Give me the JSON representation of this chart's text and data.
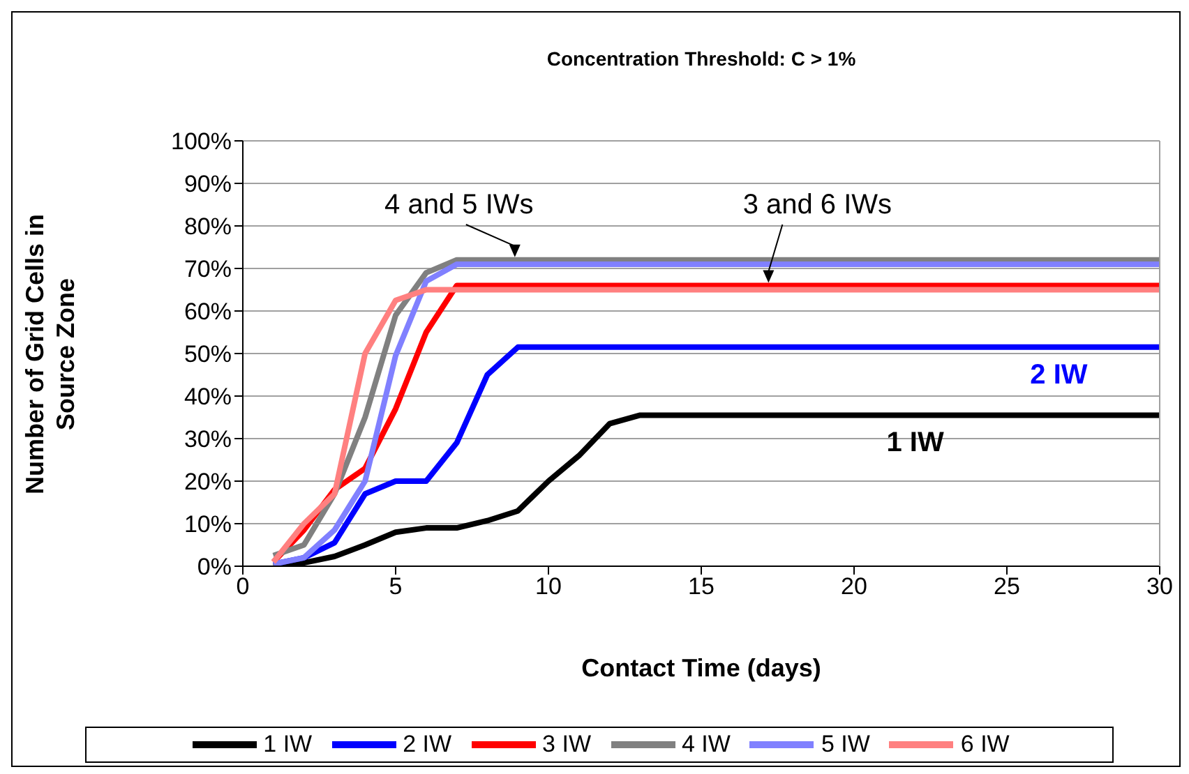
{
  "chart_data": {
    "type": "line",
    "title": "Concentration Threshold:  C > 1%",
    "xlabel": "Contact Time (days)",
    "ylabel": "Number of Grid Cells in Source Zone",
    "x": [
      1,
      2,
      3,
      4,
      5,
      6,
      7,
      8,
      9,
      10,
      11,
      12,
      13,
      30
    ],
    "series": [
      {
        "name": "1 IW",
        "color": "#000000",
        "values": [
          0,
          0.8,
          2.3,
          5,
          8,
          9,
          9,
          10.7,
          13,
          20,
          26,
          33.5,
          35.5,
          35.5
        ]
      },
      {
        "name": "2 IW",
        "color": "#0000ff",
        "values": [
          0.5,
          2,
          5.5,
          17,
          20,
          20,
          29,
          45,
          51.5,
          51.5,
          51.5,
          51.5,
          51.5,
          51.5
        ]
      },
      {
        "name": "3 IW",
        "color": "#ff0000",
        "values": [
          1,
          8.5,
          18,
          23,
          37,
          55,
          66,
          66,
          66,
          66,
          66,
          66,
          66,
          66
        ]
      },
      {
        "name": "4 IW",
        "color": "#808080",
        "values": [
          2.5,
          5,
          17,
          35,
          59,
          69,
          72,
          72,
          72,
          72,
          72,
          72,
          72,
          72
        ]
      },
      {
        "name": "5 IW",
        "color": "#8080ff",
        "values": [
          0.5,
          2,
          8.5,
          20,
          49.5,
          67,
          71,
          71,
          71,
          71,
          71,
          71,
          71,
          71
        ]
      },
      {
        "name": "6 IW",
        "color": "#ff8080",
        "values": [
          1,
          10,
          17,
          50,
          62.5,
          65,
          65,
          65,
          65,
          65,
          65,
          65,
          65,
          65
        ]
      }
    ],
    "xlim": [
      0,
      30
    ],
    "xticks": [
      0,
      5,
      10,
      15,
      20,
      25,
      30
    ],
    "ylim": [
      0,
      100
    ],
    "yticks": [
      {
        "value": 0,
        "label": "0%"
      },
      {
        "value": 10,
        "label": "10%"
      },
      {
        "value": 20,
        "label": "20%"
      },
      {
        "value": 30,
        "label": "30%"
      },
      {
        "value": 40,
        "label": "40%"
      },
      {
        "value": 50,
        "label": "50%"
      },
      {
        "value": 60,
        "label": "60%"
      },
      {
        "value": 70,
        "label": "70%"
      },
      {
        "value": 80,
        "label": "80%"
      },
      {
        "value": 90,
        "label": "90%"
      },
      {
        "value": 100,
        "label": "100%"
      }
    ],
    "grid": "y",
    "legend": "bottom",
    "marker": "none",
    "line_style": "solid",
    "annotations": [
      {
        "text": "4 and 5 IWs",
        "x": 8.9,
        "y": 72
      },
      {
        "text": "3 and 6 IWs",
        "x": 17.2,
        "y": 66
      },
      {
        "text": "2 IW",
        "x": 26.7,
        "y": 51.5
      },
      {
        "text": "1 IW",
        "x": 22,
        "y": 35.5
      }
    ]
  }
}
